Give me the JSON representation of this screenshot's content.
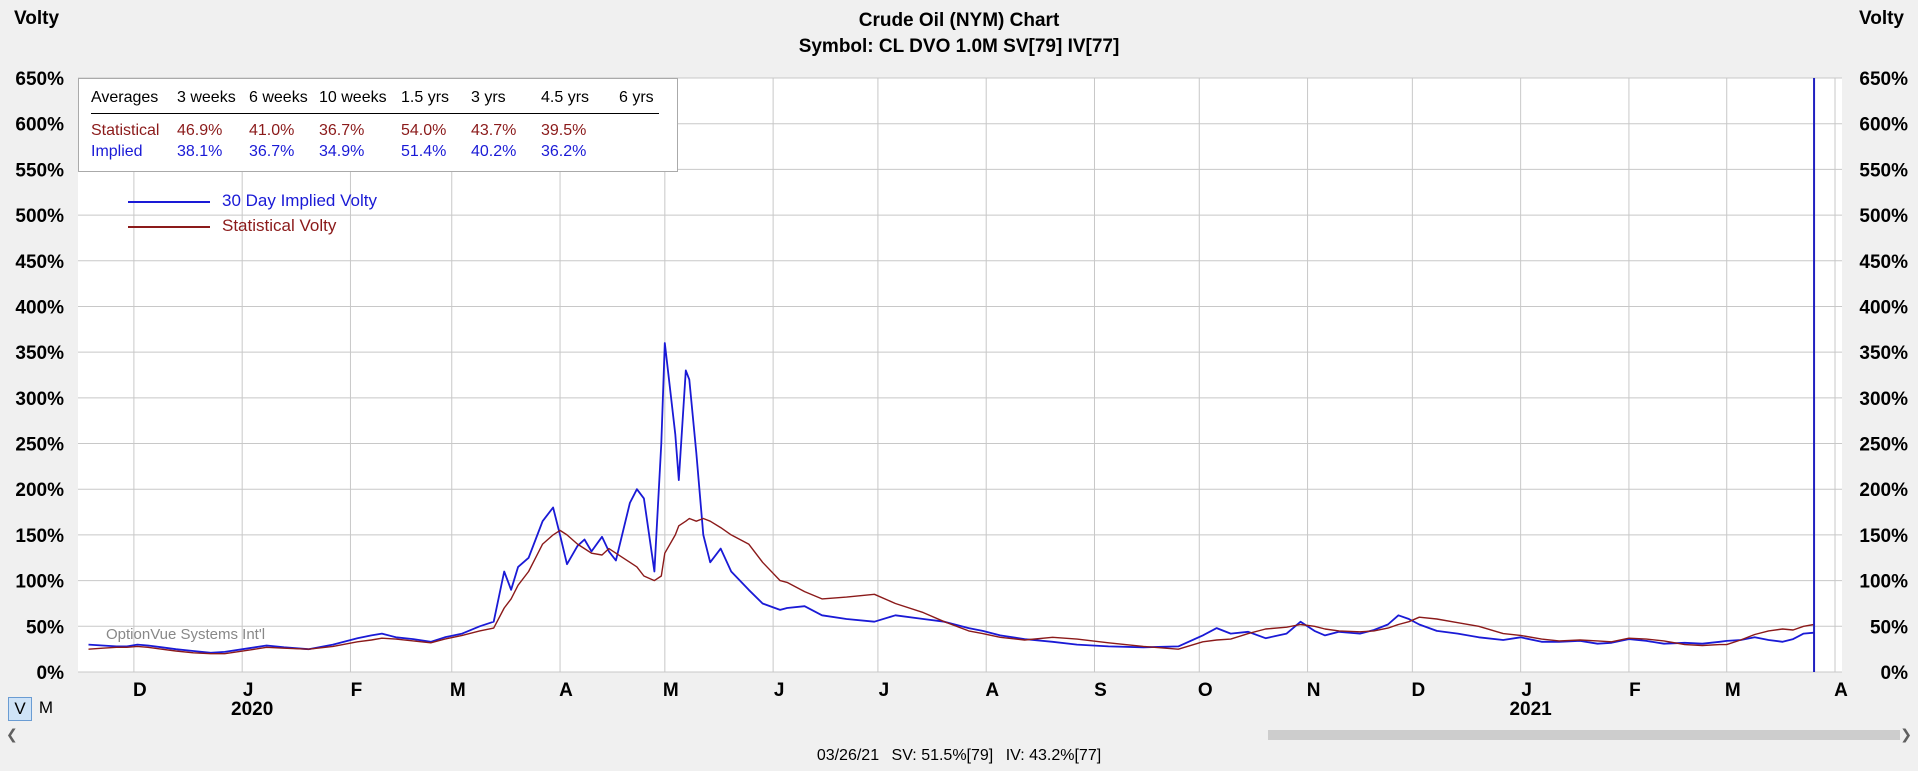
{
  "header": {
    "title": "Crude Oil (NYM) Chart",
    "subtitle": "Symbol: CL  DVO 1.0M  SV[79]  IV[77]",
    "left_axis_label": "Volty",
    "right_axis_label": "Volty"
  },
  "averages": {
    "headers": [
      "Averages",
      "3 weeks",
      "6 weeks",
      "10 weeks",
      "1.5 yrs",
      "3 yrs",
      "4.5 yrs",
      "6 yrs"
    ],
    "statistical": {
      "label": "Statistical",
      "values": [
        "46.9%",
        "41.0%",
        "36.7%",
        "54.0%",
        "43.7%",
        "39.5%",
        ""
      ]
    },
    "implied": {
      "label": "Implied",
      "values": [
        "38.1%",
        "36.7%",
        "34.9%",
        "51.4%",
        "40.2%",
        "36.2%",
        ""
      ]
    }
  },
  "legend": {
    "implied": "30 Day Implied Volty",
    "statistical": "Statistical Volty"
  },
  "watermark": "OptionVue Systems Int'l",
  "buttons": {
    "v": "V",
    "m": "M"
  },
  "status_bar": {
    "date": "03/26/21",
    "sv": "SV: 51.5%[79]",
    "iv": "IV: 43.2%[77]"
  },
  "colors": {
    "implied": "#1a1ad6",
    "statistical": "#8b1a1a",
    "grid": "#c8c8c8",
    "cursor": "#2020c0"
  },
  "chart_data": {
    "type": "line",
    "y_ticks": [
      "0%",
      "50%",
      "100%",
      "150%",
      "200%",
      "250%",
      "300%",
      "350%",
      "400%",
      "450%",
      "500%",
      "550%",
      "600%",
      "650%"
    ],
    "ylim": [
      0,
      650
    ],
    "month_labels": [
      "D",
      "J",
      "F",
      "M",
      "A",
      "M",
      "J",
      "J",
      "A",
      "S",
      "O",
      "N",
      "D",
      "J",
      "F",
      "M",
      "A"
    ],
    "year_labels": [
      {
        "label": "2020",
        "month_index": 1
      },
      {
        "label": "2021",
        "month_index": 13
      }
    ],
    "month_starts": [
      "2019-12-01",
      "2020-01-01",
      "2020-02-01",
      "2020-03-01",
      "2020-04-01",
      "2020-05-01",
      "2020-06-01",
      "2020-07-01",
      "2020-08-01",
      "2020-09-01",
      "2020-10-01",
      "2020-11-01",
      "2020-12-01",
      "2021-01-01",
      "2021-02-01",
      "2021-03-01",
      "2021-04-01"
    ],
    "x_range": [
      "2019-11-15",
      "2021-04-03"
    ],
    "cursor_date": "2021-03-26",
    "series": [
      {
        "name": "30 Day Implied Volty",
        "points": [
          [
            "2019-11-18",
            30
          ],
          [
            "2019-11-22",
            29
          ],
          [
            "2019-11-26",
            28
          ],
          [
            "2019-11-29",
            28
          ],
          [
            "2019-12-02",
            30
          ],
          [
            "2019-12-05",
            29
          ],
          [
            "2019-12-09",
            27
          ],
          [
            "2019-12-13",
            25
          ],
          [
            "2019-12-18",
            23
          ],
          [
            "2019-12-23",
            21
          ],
          [
            "2019-12-27",
            22
          ],
          [
            "2020-01-03",
            26
          ],
          [
            "2020-01-08",
            29
          ],
          [
            "2020-01-13",
            27
          ],
          [
            "2020-01-20",
            25
          ],
          [
            "2020-01-27",
            30
          ],
          [
            "2020-02-03",
            37
          ],
          [
            "2020-02-07",
            40
          ],
          [
            "2020-02-10",
            42
          ],
          [
            "2020-02-14",
            38
          ],
          [
            "2020-02-19",
            36
          ],
          [
            "2020-02-24",
            33
          ],
          [
            "2020-02-28",
            38
          ],
          [
            "2020-03-04",
            42
          ],
          [
            "2020-03-09",
            50
          ],
          [
            "2020-03-13",
            55
          ],
          [
            "2020-03-16",
            110
          ],
          [
            "2020-03-18",
            90
          ],
          [
            "2020-03-20",
            115
          ],
          [
            "2020-03-23",
            125
          ],
          [
            "2020-03-25",
            145
          ],
          [
            "2020-03-27",
            165
          ],
          [
            "2020-03-30",
            180
          ],
          [
            "2020-04-01",
            150
          ],
          [
            "2020-04-03",
            118
          ],
          [
            "2020-04-06",
            138
          ],
          [
            "2020-04-08",
            145
          ],
          [
            "2020-04-10",
            132
          ],
          [
            "2020-04-13",
            148
          ],
          [
            "2020-04-15",
            132
          ],
          [
            "2020-04-17",
            122
          ],
          [
            "2020-04-21",
            185
          ],
          [
            "2020-04-23",
            200
          ],
          [
            "2020-04-25",
            190
          ],
          [
            "2020-04-28",
            110
          ],
          [
            "2020-04-30",
            250
          ],
          [
            "2020-05-01",
            360
          ],
          [
            "2020-05-04",
            260
          ],
          [
            "2020-05-05",
            210
          ],
          [
            "2020-05-07",
            330
          ],
          [
            "2020-05-08",
            320
          ],
          [
            "2020-05-10",
            240
          ],
          [
            "2020-05-12",
            150
          ],
          [
            "2020-05-14",
            120
          ],
          [
            "2020-05-17",
            135
          ],
          [
            "2020-05-20",
            110
          ],
          [
            "2020-05-25",
            90
          ],
          [
            "2020-05-29",
            75
          ],
          [
            "2020-06-03",
            68
          ],
          [
            "2020-06-05",
            70
          ],
          [
            "2020-06-10",
            72
          ],
          [
            "2020-06-15",
            62
          ],
          [
            "2020-06-22",
            58
          ],
          [
            "2020-06-30",
            55
          ],
          [
            "2020-07-06",
            62
          ],
          [
            "2020-07-14",
            58
          ],
          [
            "2020-07-20",
            55
          ],
          [
            "2020-07-27",
            48
          ],
          [
            "2020-07-31",
            45
          ],
          [
            "2020-08-05",
            40
          ],
          [
            "2020-08-12",
            36
          ],
          [
            "2020-08-20",
            33
          ],
          [
            "2020-08-27",
            30
          ],
          [
            "2020-09-05",
            28
          ],
          [
            "2020-09-15",
            27
          ],
          [
            "2020-09-25",
            28
          ],
          [
            "2020-10-02",
            40
          ],
          [
            "2020-10-06",
            48
          ],
          [
            "2020-10-10",
            42
          ],
          [
            "2020-10-15",
            44
          ],
          [
            "2020-10-20",
            37
          ],
          [
            "2020-10-26",
            42
          ],
          [
            "2020-10-30",
            55
          ],
          [
            "2020-11-03",
            45
          ],
          [
            "2020-11-06",
            40
          ],
          [
            "2020-11-10",
            44
          ],
          [
            "2020-11-16",
            42
          ],
          [
            "2020-11-20",
            46
          ],
          [
            "2020-11-24",
            52
          ],
          [
            "2020-11-27",
            62
          ],
          [
            "2020-11-30",
            58
          ],
          [
            "2020-12-03",
            52
          ],
          [
            "2020-12-08",
            45
          ],
          [
            "2020-12-14",
            42
          ],
          [
            "2020-12-20",
            38
          ],
          [
            "2020-12-27",
            35
          ],
          [
            "2021-01-01",
            38
          ],
          [
            "2021-01-07",
            33
          ],
          [
            "2021-01-12",
            33
          ],
          [
            "2021-01-18",
            34
          ],
          [
            "2021-01-23",
            31
          ],
          [
            "2021-01-27",
            32
          ],
          [
            "2021-02-01",
            36
          ],
          [
            "2021-02-06",
            34
          ],
          [
            "2021-02-11",
            31
          ],
          [
            "2021-02-17",
            32
          ],
          [
            "2021-02-22",
            31
          ],
          [
            "2021-02-27",
            33
          ],
          [
            "2021-03-01",
            34
          ],
          [
            "2021-03-05",
            35
          ],
          [
            "2021-03-09",
            38
          ],
          [
            "2021-03-13",
            35
          ],
          [
            "2021-03-17",
            33
          ],
          [
            "2021-03-20",
            36
          ],
          [
            "2021-03-23",
            42
          ],
          [
            "2021-03-26",
            43
          ]
        ]
      },
      {
        "name": "Statistical Volty",
        "points": [
          [
            "2019-11-18",
            25
          ],
          [
            "2019-11-22",
            26
          ],
          [
            "2019-11-26",
            27
          ],
          [
            "2019-11-29",
            27
          ],
          [
            "2019-12-02",
            28
          ],
          [
            "2019-12-05",
            27
          ],
          [
            "2019-12-09",
            25
          ],
          [
            "2019-12-13",
            23
          ],
          [
            "2019-12-18",
            21
          ],
          [
            "2019-12-23",
            20
          ],
          [
            "2019-12-27",
            20
          ],
          [
            "2020-01-03",
            24
          ],
          [
            "2020-01-08",
            27
          ],
          [
            "2020-01-13",
            26
          ],
          [
            "2020-01-20",
            25
          ],
          [
            "2020-01-27",
            28
          ],
          [
            "2020-02-03",
            33
          ],
          [
            "2020-02-07",
            35
          ],
          [
            "2020-02-10",
            37
          ],
          [
            "2020-02-14",
            36
          ],
          [
            "2020-02-19",
            34
          ],
          [
            "2020-02-24",
            32
          ],
          [
            "2020-02-28",
            36
          ],
          [
            "2020-03-04",
            40
          ],
          [
            "2020-03-09",
            45
          ],
          [
            "2020-03-13",
            48
          ],
          [
            "2020-03-16",
            70
          ],
          [
            "2020-03-18",
            80
          ],
          [
            "2020-03-20",
            95
          ],
          [
            "2020-03-23",
            110
          ],
          [
            "2020-03-25",
            125
          ],
          [
            "2020-03-27",
            140
          ],
          [
            "2020-03-30",
            150
          ],
          [
            "2020-04-01",
            155
          ],
          [
            "2020-04-03",
            150
          ],
          [
            "2020-04-06",
            140
          ],
          [
            "2020-04-08",
            135
          ],
          [
            "2020-04-10",
            130
          ],
          [
            "2020-04-13",
            128
          ],
          [
            "2020-04-15",
            135
          ],
          [
            "2020-04-17",
            130
          ],
          [
            "2020-04-21",
            120
          ],
          [
            "2020-04-23",
            115
          ],
          [
            "2020-04-25",
            105
          ],
          [
            "2020-04-28",
            100
          ],
          [
            "2020-04-30",
            105
          ],
          [
            "2020-05-01",
            130
          ],
          [
            "2020-05-04",
            150
          ],
          [
            "2020-05-05",
            160
          ],
          [
            "2020-05-07",
            165
          ],
          [
            "2020-05-08",
            168
          ],
          [
            "2020-05-10",
            165
          ],
          [
            "2020-05-12",
            168
          ],
          [
            "2020-05-14",
            165
          ],
          [
            "2020-05-17",
            158
          ],
          [
            "2020-05-20",
            150
          ],
          [
            "2020-05-25",
            140
          ],
          [
            "2020-05-29",
            120
          ],
          [
            "2020-06-03",
            100
          ],
          [
            "2020-06-05",
            98
          ],
          [
            "2020-06-10",
            88
          ],
          [
            "2020-06-15",
            80
          ],
          [
            "2020-06-22",
            82
          ],
          [
            "2020-06-30",
            85
          ],
          [
            "2020-07-06",
            75
          ],
          [
            "2020-07-14",
            65
          ],
          [
            "2020-07-20",
            55
          ],
          [
            "2020-07-27",
            45
          ],
          [
            "2020-07-31",
            42
          ],
          [
            "2020-08-05",
            38
          ],
          [
            "2020-08-12",
            35
          ],
          [
            "2020-08-20",
            38
          ],
          [
            "2020-08-27",
            36
          ],
          [
            "2020-09-05",
            32
          ],
          [
            "2020-09-15",
            28
          ],
          [
            "2020-09-25",
            25
          ],
          [
            "2020-10-02",
            33
          ],
          [
            "2020-10-06",
            35
          ],
          [
            "2020-10-10",
            36
          ],
          [
            "2020-10-15",
            42
          ],
          [
            "2020-10-20",
            47
          ],
          [
            "2020-10-26",
            49
          ],
          [
            "2020-10-30",
            52
          ],
          [
            "2020-11-03",
            50
          ],
          [
            "2020-11-06",
            47
          ],
          [
            "2020-11-10",
            45
          ],
          [
            "2020-11-16",
            44
          ],
          [
            "2020-11-20",
            45
          ],
          [
            "2020-11-24",
            48
          ],
          [
            "2020-11-27",
            52
          ],
          [
            "2020-11-30",
            55
          ],
          [
            "2020-12-03",
            60
          ],
          [
            "2020-12-08",
            58
          ],
          [
            "2020-12-14",
            54
          ],
          [
            "2020-12-20",
            50
          ],
          [
            "2020-12-27",
            42
          ],
          [
            "2021-01-01",
            40
          ],
          [
            "2021-01-07",
            36
          ],
          [
            "2021-01-12",
            34
          ],
          [
            "2021-01-18",
            35
          ],
          [
            "2021-01-23",
            34
          ],
          [
            "2021-01-27",
            33
          ],
          [
            "2021-02-01",
            37
          ],
          [
            "2021-02-06",
            36
          ],
          [
            "2021-02-11",
            34
          ],
          [
            "2021-02-17",
            30
          ],
          [
            "2021-02-22",
            29
          ],
          [
            "2021-02-27",
            30
          ],
          [
            "2021-03-01",
            30
          ],
          [
            "2021-03-05",
            35
          ],
          [
            "2021-03-09",
            41
          ],
          [
            "2021-03-13",
            45
          ],
          [
            "2021-03-17",
            47
          ],
          [
            "2021-03-20",
            46
          ],
          [
            "2021-03-23",
            50
          ],
          [
            "2021-03-26",
            52
          ]
        ]
      }
    ]
  }
}
